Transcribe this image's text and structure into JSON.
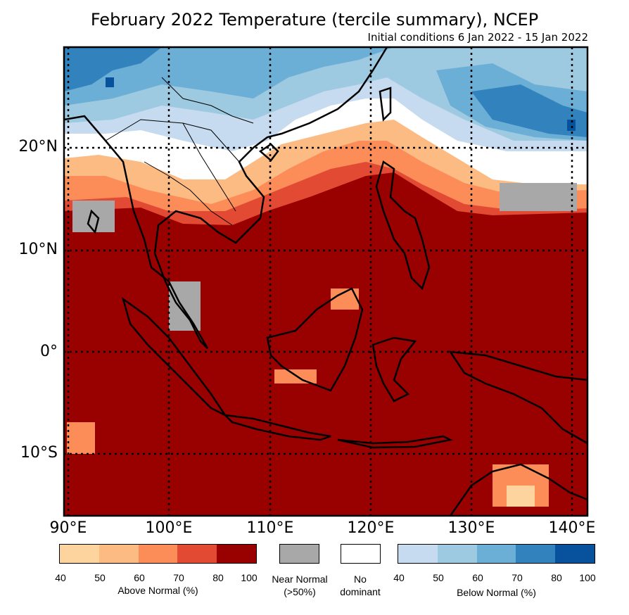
{
  "title": "February 2022 Temperature (tercile summary), NCEP",
  "subtitle": "Initial conditions 6 Jan 2022 - 15 Jan 2022",
  "map": {
    "lon_range": [
      89,
      141
    ],
    "lat_range": [
      -16,
      30
    ],
    "lat_labels": [
      "20°N",
      "10°N",
      "0°",
      "10°S"
    ],
    "lon_labels": [
      "90°E",
      "100°E",
      "110°E",
      "120°E",
      "130°E",
      "140°E"
    ],
    "gridlines": "dotted",
    "regions": [
      {
        "category": "below_normal",
        "level": "50-70",
        "area": "southern China, northern Indochina, northern Myanmar"
      },
      {
        "category": "below_normal",
        "level": "60-80",
        "area": "western Pacific north of 17°N"
      },
      {
        "category": "no_dominant",
        "area": "central Myanmar/Thailand, Pacific 14-20°N"
      },
      {
        "category": "near_normal",
        "area": "southern Myanmar coast, Malay Peninsula, Pacific around 15-17°N"
      },
      {
        "category": "above_normal",
        "level": "50-70",
        "area": "South China Sea, Philippines, Indochina south"
      },
      {
        "category": "above_normal",
        "level": "80-100",
        "area": "south of 10°N: Maritime Continent, Indian Ocean"
      }
    ]
  },
  "legend": {
    "above": {
      "caption": "Above Normal (%)",
      "ticks": [
        "40",
        "50",
        "60",
        "70",
        "80",
        "100"
      ],
      "colors": [
        "#fdd49e",
        "#fdbb84",
        "#fc8d59",
        "#e34a33",
        "#990000"
      ]
    },
    "near": {
      "caption_line1": "Near Normal",
      "caption_line2": "(>50%)",
      "color": "#a8a8a8"
    },
    "none": {
      "caption_line1": "No",
      "caption_line2": "dominant",
      "color": "#ffffff"
    },
    "below": {
      "caption": "Below Normal (%)",
      "ticks": [
        "40",
        "50",
        "60",
        "70",
        "80",
        "100"
      ],
      "colors": [
        "#c6dbef",
        "#9ecae1",
        "#6baed6",
        "#3182bd",
        "#08519c"
      ]
    }
  }
}
